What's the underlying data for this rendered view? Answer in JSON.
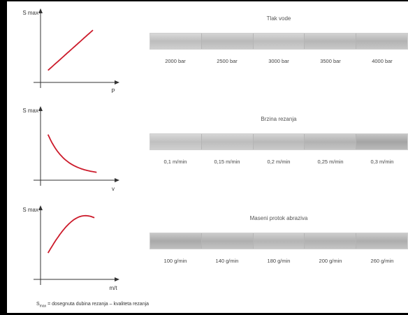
{
  "footnote": {
    "prefix": "S",
    "subscript": "max",
    "text": " = dosegnuta dubina rezanja – kvaliteta rezanja"
  },
  "chart_data": [
    {
      "type": "line",
      "ylabel": "S max",
      "xlabel": "P",
      "curve_shape": "linear-increasing",
      "line_color": "#cc1b2b",
      "title": "Tlak vode",
      "categories": [
        "2000 bar",
        "2500 bar",
        "3000 bar",
        "3500 bar",
        "4000 bar"
      ]
    },
    {
      "type": "line",
      "ylabel": "S max",
      "xlabel": "v",
      "curve_shape": "decreasing-convex",
      "line_color": "#cc1b2b",
      "title": "Brzina rezanja",
      "categories": [
        "0,1 m/min",
        "0,15 m/min",
        "0,2 m/min",
        "0,25 m/min",
        "0,3 m/min"
      ]
    },
    {
      "type": "line",
      "ylabel": "S max",
      "xlabel": "m/t",
      "curve_shape": "rise-then-plateau",
      "line_color": "#cc1b2b",
      "title": "Maseni protok abraziva",
      "categories": [
        "100 g/min",
        "140 g/min",
        "180 g/min",
        "200 g/min",
        "260 g/min"
      ]
    }
  ]
}
